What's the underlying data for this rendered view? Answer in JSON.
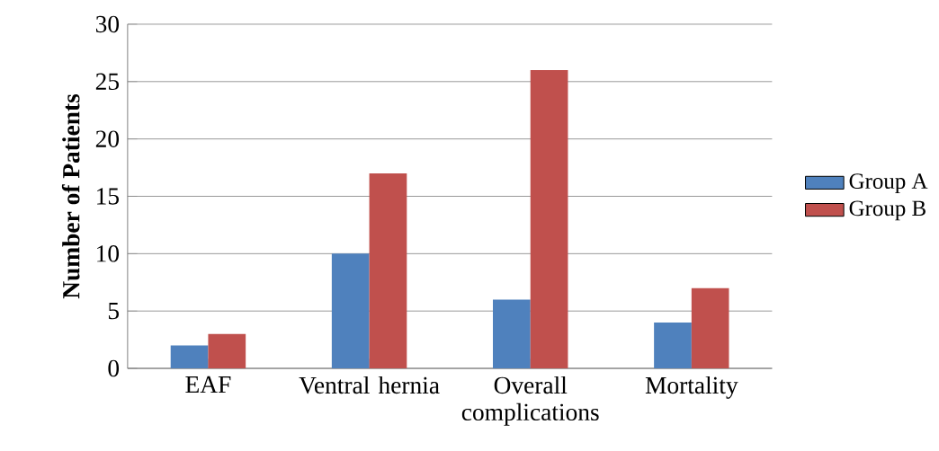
{
  "chart_data": {
    "type": "bar",
    "ylabel": "Number of Patients",
    "categories": [
      "EAF",
      "Ventral hernia",
      "Overall complications",
      "Mortality"
    ],
    "series": [
      {
        "name": "Group A",
        "color": "#4f81bd",
        "values": [
          2,
          10,
          6,
          4
        ]
      },
      {
        "name": "Group B",
        "color": "#c0504d",
        "values": [
          3,
          17,
          26,
          7
        ]
      }
    ],
    "ylim": [
      0,
      30
    ],
    "yticks": [
      0,
      5,
      10,
      15,
      20,
      25,
      30
    ],
    "grid": "y",
    "legend": "right"
  }
}
